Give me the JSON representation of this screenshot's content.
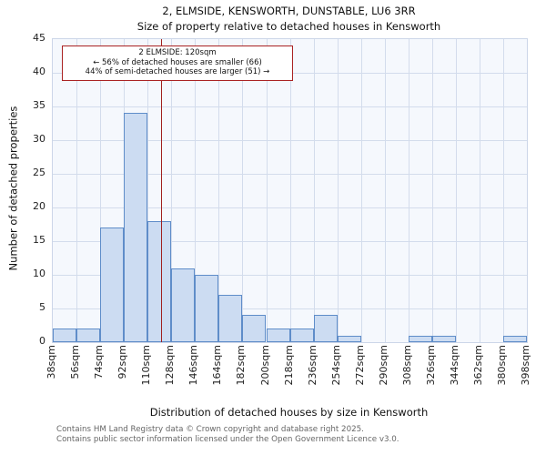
{
  "title": "2, ELMSIDE, KENSWORTH, DUNSTABLE, LU6 3RR",
  "subtitle": "Size of property relative to detached houses in Kensworth",
  "annotation": {
    "line1": "2 ELMSIDE: 120sqm",
    "line2": "← 56% of detached houses are smaller (66)",
    "line3": "44% of semi-detached houses are larger (51) →"
  },
  "footer": {
    "line1": "Contains HM Land Registry data © Crown copyright and database right 2025.",
    "line2": "Contains public sector information licensed under the Open Government Licence v3.0."
  },
  "chart_data": {
    "type": "bar",
    "title": "2, ELMSIDE, KENSWORTH, DUNSTABLE, LU6 3RR",
    "subtitle": "Size of property relative to detached houses in Kensworth",
    "xlabel": "Distribution of detached houses by size in Kensworth",
    "ylabel": "Number of detached properties",
    "bin_edges": [
      38,
      56,
      74,
      92,
      110,
      128,
      146,
      164,
      182,
      200,
      218,
      236,
      254,
      272,
      290,
      308,
      326,
      344,
      362,
      380,
      398
    ],
    "bin_labels": [
      "38sqm",
      "56sqm",
      "74sqm",
      "92sqm",
      "110sqm",
      "128sqm",
      "146sqm",
      "164sqm",
      "182sqm",
      "200sqm",
      "218sqm",
      "236sqm",
      "254sqm",
      "272sqm",
      "290sqm",
      "308sqm",
      "326sqm",
      "344sqm",
      "362sqm",
      "380sqm",
      "398sqm"
    ],
    "values": [
      2,
      2,
      17,
      34,
      18,
      11,
      10,
      7,
      4,
      2,
      2,
      4,
      1,
      0,
      0,
      1,
      1,
      0,
      0,
      1
    ],
    "ylim": [
      0,
      45
    ],
    "yticks": [
      0,
      5,
      10,
      15,
      20,
      25,
      30,
      35,
      40,
      45
    ],
    "marker_value": 120,
    "grid": "on",
    "colors": {
      "bar_fill": "#ccdcf2",
      "bar_border": "#5f8dc9",
      "marker_line": "#a02020",
      "annotation_border": "#aa2222",
      "gridline": "#d3dcec",
      "plot_background": "#f5f8fd",
      "footer_text": "#666666"
    }
  }
}
